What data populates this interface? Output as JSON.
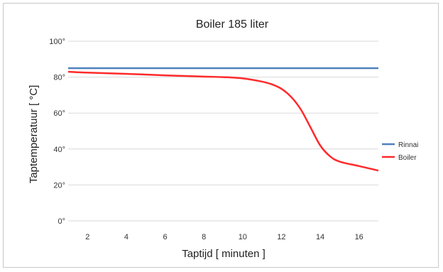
{
  "chart_data": {
    "type": "line",
    "title": "Boiler 185 liter",
    "xlabel": "Taptijd [ minuten ]",
    "ylabel": "Taptemperatuur [ °C]",
    "xlim": [
      1,
      17
    ],
    "ylim": [
      0,
      100
    ],
    "x_ticks": [
      2,
      4,
      6,
      8,
      10,
      12,
      14,
      16
    ],
    "x_tick_labels": [
      "2",
      "4",
      "6",
      "8",
      "10",
      "12",
      "14",
      "16"
    ],
    "y_ticks": [
      0,
      20,
      40,
      60,
      80,
      100
    ],
    "y_tick_labels": [
      "0°",
      "20°",
      "40°",
      "60°",
      "80°",
      "100°"
    ],
    "grid": true,
    "legend_position": "right",
    "series": [
      {
        "name": "Rinnai",
        "color": "#4f81bd",
        "x": [
          1,
          17
        ],
        "y": [
          85,
          85
        ]
      },
      {
        "name": "Boiler",
        "color": "#ff2a2a",
        "x": [
          1,
          2,
          4,
          6,
          8,
          9,
          10,
          11,
          11.5,
          12,
          12.5,
          13,
          13.5,
          14,
          14.5,
          15,
          16,
          17
        ],
        "y": [
          83,
          82.5,
          81.8,
          81,
          80.3,
          80,
          79.3,
          77.5,
          76,
          73.5,
          69,
          62,
          52,
          42,
          36,
          33,
          30.5,
          28
        ]
      }
    ]
  }
}
